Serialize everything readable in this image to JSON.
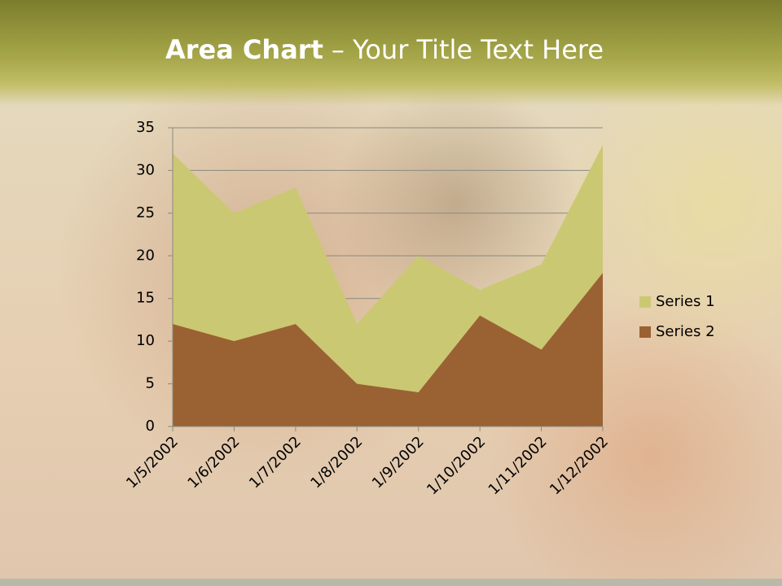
{
  "slide": {
    "title": [
      "Area Chart",
      "– Your Title Text Here"
    ]
  },
  "chart_data": {
    "type": "area",
    "stacked": true,
    "x": [
      "1/5/2002",
      "1/6/2002",
      "1/7/2002",
      "1/8/2002",
      "1/9/2002",
      "1/10/2002",
      "1/11/2002",
      "1/12/2002"
    ],
    "series": [
      {
        "name": "Series 1",
        "color": "#cbc873",
        "values": [
          20,
          15,
          16,
          7,
          16,
          3,
          10,
          15
        ]
      },
      {
        "name": "Series 2",
        "color": "#9a6232",
        "values": [
          12,
          10,
          12,
          5,
          4,
          13,
          9,
          18
        ]
      }
    ],
    "ylim": [
      0,
      35
    ],
    "yticks": [
      0,
      5,
      10,
      15,
      20,
      25,
      30,
      35
    ],
    "grid": true,
    "legend": "right"
  }
}
